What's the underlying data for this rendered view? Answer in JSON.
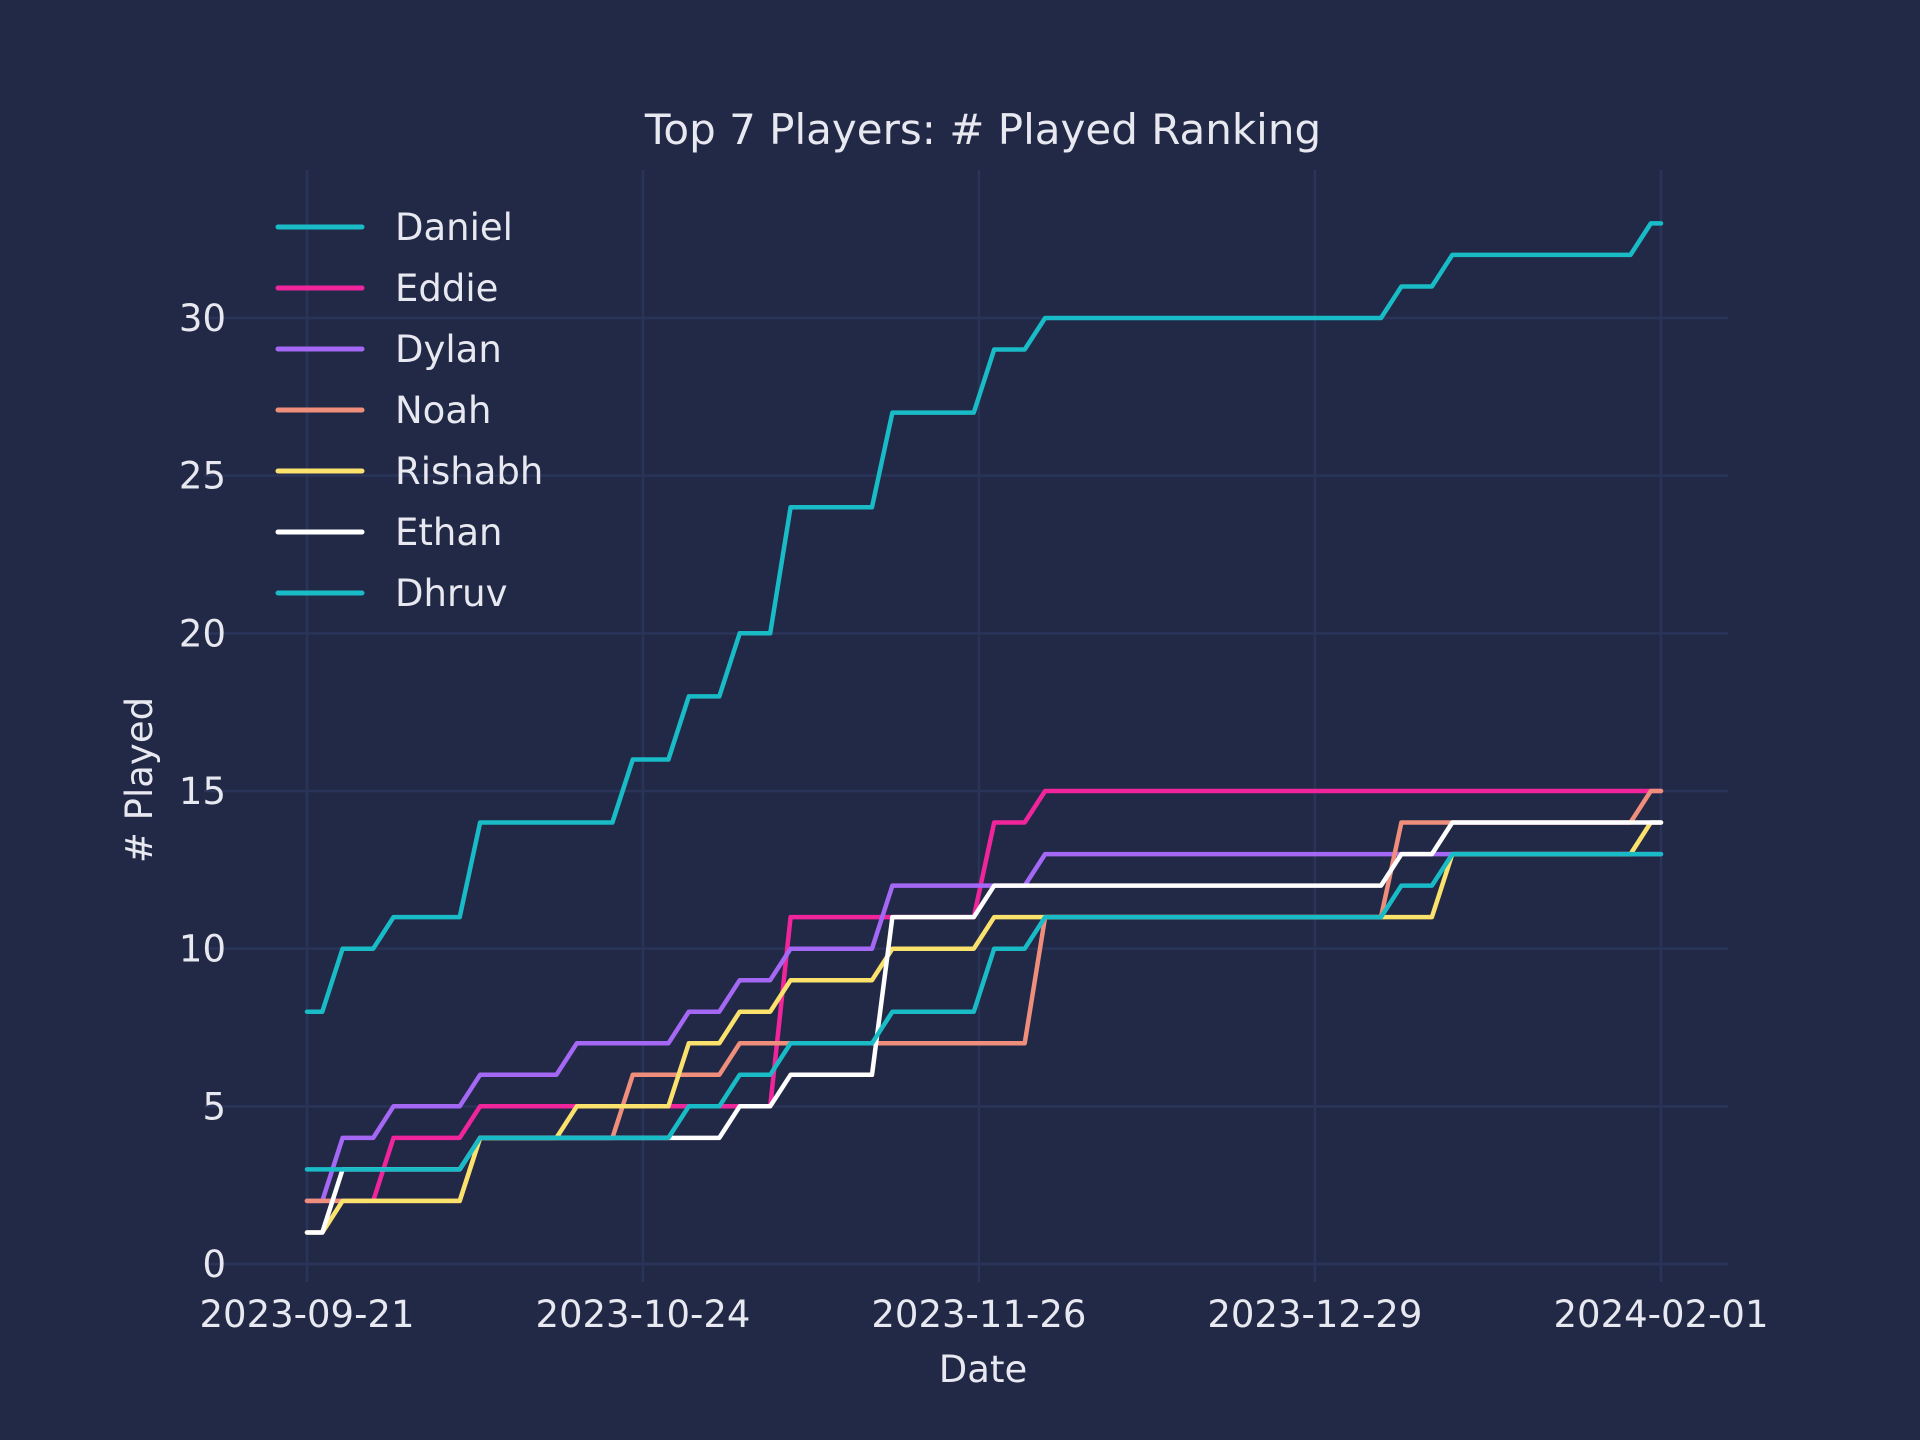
{
  "chart_data": {
    "type": "line",
    "title": "Top 7 Players: # Played Ranking",
    "xlabel": "Date",
    "ylabel": "# Played",
    "x": [
      "2023-09-21",
      "2023-09-26",
      "2023-10-01",
      "2023-10-06",
      "2023-10-08",
      "2023-10-14",
      "2023-10-19",
      "2023-10-25",
      "2023-10-30",
      "2023-11-04",
      "2023-11-09",
      "2023-11-14",
      "2023-11-19",
      "2023-11-24",
      "2023-11-29",
      "2023-12-04",
      "2023-12-09",
      "2023-12-14",
      "2023-12-19",
      "2023-12-24",
      "2023-12-29",
      "2024-01-03",
      "2024-01-08",
      "2024-01-13",
      "2024-01-18",
      "2024-01-23",
      "2024-01-28",
      "2024-02-01"
    ],
    "x_ticks": [
      "2023-09-21",
      "2023-10-24",
      "2023-11-26",
      "2023-12-29",
      "2024-02-01"
    ],
    "y_ticks": [
      0,
      5,
      10,
      15,
      20,
      25,
      30
    ],
    "ylim": [
      -0.3,
      34.6
    ],
    "grid": true,
    "legend_position": "top-left",
    "series": [
      {
        "name": "Daniel",
        "color": "#19bcc6",
        "values": [
          8,
          10,
          11,
          11,
          14,
          14,
          14,
          16,
          18,
          20,
          24,
          24,
          27,
          27,
          29,
          30,
          30,
          30,
          30,
          30,
          30,
          30,
          31,
          32,
          32,
          32,
          32,
          33
        ]
      },
      {
        "name": "Eddie",
        "color": "#f0259c",
        "values": [
          2,
          2,
          4,
          4,
          5,
          5,
          5,
          5,
          5,
          5,
          11,
          11,
          11,
          11,
          14,
          15,
          15,
          15,
          15,
          15,
          15,
          15,
          15,
          15,
          15,
          15,
          15,
          15
        ]
      },
      {
        "name": "Dylan",
        "color": "#a468f5",
        "values": [
          2,
          4,
          5,
          5,
          6,
          6,
          7,
          7,
          8,
          9,
          10,
          10,
          12,
          12,
          12,
          13,
          13,
          13,
          13,
          13,
          13,
          13,
          13,
          13,
          13,
          13,
          13,
          13
        ]
      },
      {
        "name": "Noah",
        "color": "#f08e7c",
        "values": [
          2,
          2,
          2,
          2,
          4,
          4,
          4,
          6,
          6,
          7,
          7,
          7,
          7,
          7,
          7,
          11,
          11,
          11,
          11,
          11,
          11,
          11,
          14,
          14,
          14,
          14,
          14,
          15
        ]
      },
      {
        "name": "Rishabh",
        "color": "#fbe26c",
        "values": [
          1,
          2,
          2,
          2,
          4,
          4,
          5,
          5,
          7,
          8,
          9,
          9,
          10,
          10,
          11,
          11,
          11,
          11,
          11,
          11,
          11,
          11,
          11,
          13,
          13,
          13,
          13,
          14
        ]
      },
      {
        "name": "Ethan",
        "color": "#ffffff",
        "values": [
          1,
          3,
          3,
          3,
          4,
          4,
          4,
          4,
          4,
          5,
          6,
          6,
          11,
          11,
          12,
          12,
          12,
          12,
          12,
          12,
          12,
          12,
          13,
          14,
          14,
          14,
          14,
          14
        ]
      },
      {
        "name": "Dhruv",
        "color": "#19bcc6",
        "values": [
          3,
          3,
          3,
          3,
          4,
          4,
          4,
          4,
          5,
          6,
          7,
          7,
          8,
          8,
          10,
          11,
          11,
          11,
          11,
          11,
          11,
          11,
          12,
          13,
          13,
          13,
          13,
          13
        ]
      }
    ]
  }
}
